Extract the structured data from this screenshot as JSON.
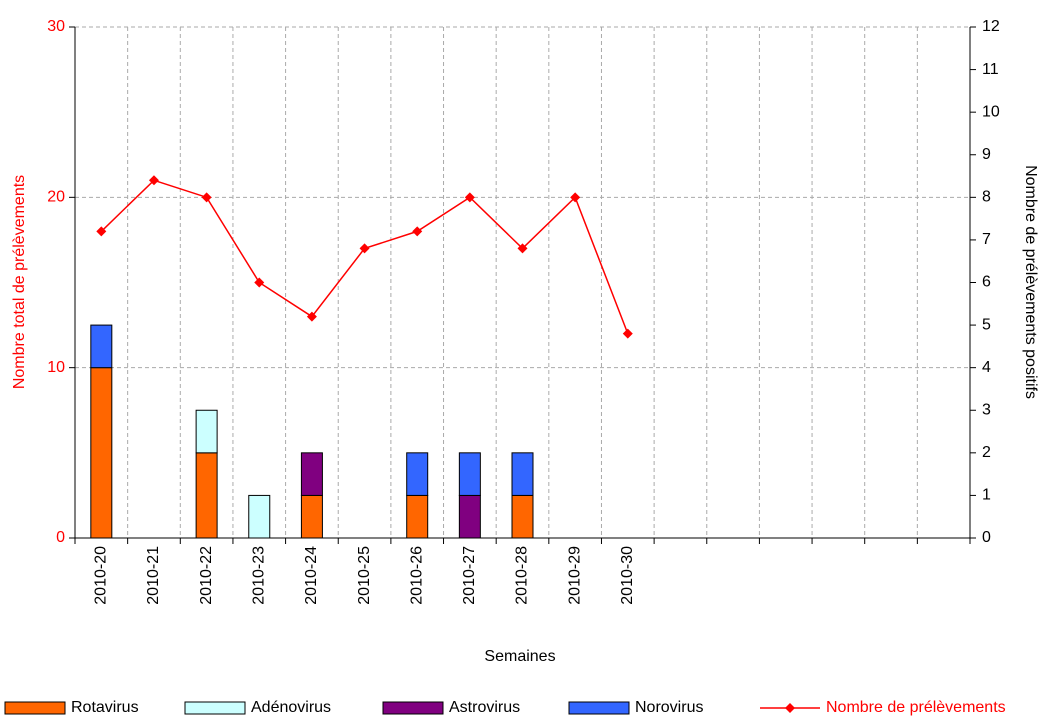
{
  "chart_data": {
    "type": "bar_line",
    "x_label": "Semaines",
    "y_label": "Nombre total de prélèvements",
    "y2_label": "Nombre de prélèvements positifs",
    "categories": [
      "2010-20",
      "2010-21",
      "2010-22",
      "2010-23",
      "2010-24",
      "2010-25",
      "2010-26",
      "2010-27",
      "2010-28",
      "2010-29",
      "2010-30",
      null,
      null,
      null,
      null,
      null,
      null
    ],
    "series": [
      {
        "name": "Rotavirus",
        "color": "#ff6600",
        "axis": "y2",
        "kind": "bar",
        "values": [
          4,
          0,
          2,
          0,
          1,
          0,
          1,
          0,
          1,
          0,
          0,
          null,
          null,
          null,
          null,
          null,
          null
        ]
      },
      {
        "name": "Adénovirus",
        "color": "#ccffff",
        "axis": "y2",
        "kind": "bar",
        "values": [
          0,
          0,
          1,
          1,
          0,
          0,
          0,
          0,
          0,
          0,
          0,
          null,
          null,
          null,
          null,
          null,
          null
        ]
      },
      {
        "name": "Astrovirus",
        "color": "#800080",
        "axis": "y2",
        "kind": "bar",
        "values": [
          0,
          0,
          0,
          0,
          1,
          0,
          0,
          1,
          0,
          0,
          0,
          null,
          null,
          null,
          null,
          null,
          null
        ]
      },
      {
        "name": "Norovirus",
        "color": "#3366ff",
        "axis": "y2",
        "kind": "bar",
        "values": [
          1,
          0,
          0,
          0,
          0,
          0,
          1,
          1,
          1,
          0,
          0,
          null,
          null,
          null,
          null,
          null,
          null
        ]
      },
      {
        "name": "Nombre de prélèvements",
        "color": "#ff0000",
        "axis": "y",
        "kind": "line",
        "values": [
          18,
          21,
          20,
          15,
          13,
          17,
          18,
          20,
          17,
          20,
          12,
          null,
          null,
          null,
          null,
          null,
          null
        ]
      }
    ],
    "ylim": [
      0,
      30
    ],
    "yticks": [
      0,
      10,
      20,
      30
    ],
    "y2lim": [
      0,
      12
    ],
    "y2ticks": [
      0,
      1,
      2,
      3,
      4,
      5,
      6,
      7,
      8,
      9,
      10,
      11,
      12
    ],
    "grid": true,
    "legend": "bottom"
  }
}
